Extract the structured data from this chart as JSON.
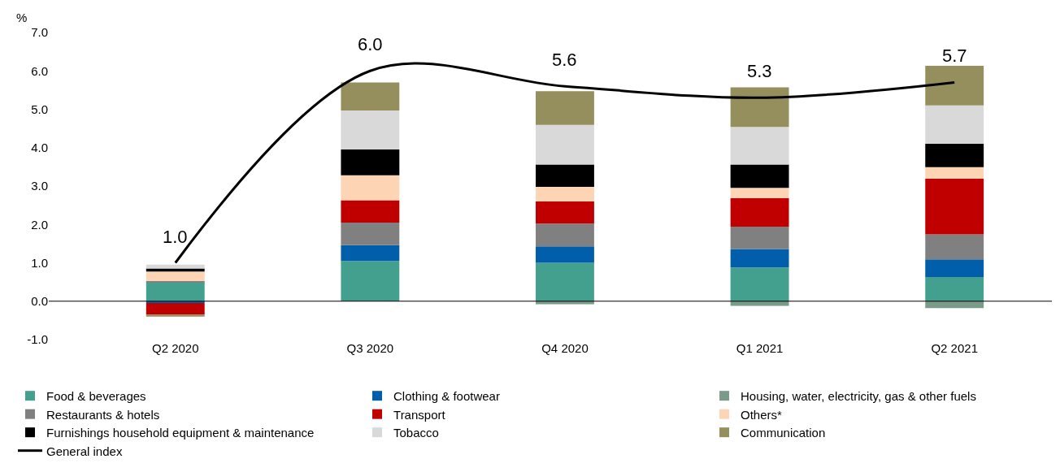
{
  "chart_data": {
    "type": "bar",
    "stacked": true,
    "ylabel": "%",
    "categories": [
      "Q2 2020",
      "Q3 2020",
      "Q4 2020",
      "Q1 2021",
      "Q2 2021"
    ],
    "ylim": [
      -1,
      7
    ],
    "ref_lines": [
      {
        "axis": "y",
        "value": 0,
        "color": "#000000"
      }
    ],
    "yticks": [
      {
        "value": -1,
        "label": "-1.0"
      },
      {
        "value": 0,
        "label": "0.0"
      },
      {
        "value": 1,
        "label": "1.0"
      },
      {
        "value": 2,
        "label": "2.0"
      },
      {
        "value": 3,
        "label": "3.0"
      },
      {
        "value": 4,
        "label": "4.0"
      },
      {
        "value": 5,
        "label": "5.0"
      },
      {
        "value": 6,
        "label": "6.0"
      },
      {
        "value": 7,
        "label": "7.0"
      }
    ],
    "legend": "bottom",
    "series": [
      {
        "name": "Food & beverages",
        "color": "#43a08e",
        "values": [
          0.5,
          1.05,
          1.0,
          0.88,
          0.63
        ]
      },
      {
        "name": "Clothing & footwear",
        "color": "#005eaa",
        "values": [
          -0.05,
          0.41,
          0.43,
          0.48,
          0.46
        ]
      },
      {
        "name": "Housing, water, electricity, gas & other fuels",
        "color": "#7a9a8a",
        "values": [
          0.0,
          0.0,
          -0.08,
          -0.12,
          -0.18
        ]
      },
      {
        "name": "Restaurants & hotels",
        "color": "#808080",
        "values": [
          0.03,
          0.59,
          0.59,
          0.58,
          0.65
        ]
      },
      {
        "name": "Transport",
        "color": "#c00000",
        "values": [
          -0.3,
          0.58,
          0.58,
          0.75,
          1.45
        ]
      },
      {
        "name": "Others*",
        "color": "#fdd5b4",
        "values": [
          0.24,
          0.65,
          0.38,
          0.26,
          0.3
        ]
      },
      {
        "name": "Furnishings household equipment & maintenance",
        "color": "#000000",
        "values": [
          0.08,
          0.67,
          0.58,
          0.61,
          0.61
        ]
      },
      {
        "name": "Tobacco",
        "color": "#d9d9d9",
        "values": [
          0.1,
          1.02,
          1.03,
          0.98,
          1.0
        ]
      },
      {
        "name": "Communication",
        "color": "#948f5d",
        "values": [
          -0.05,
          0.73,
          0.88,
          1.03,
          1.03
        ]
      },
      {
        "name": "General index",
        "type": "line",
        "color": "#000000",
        "marker": "none",
        "values": [
          1.0,
          6.0,
          5.6,
          5.3,
          5.7
        ],
        "value_labels": [
          "1.0",
          "6.0",
          "5.6",
          "5.3",
          "5.7"
        ]
      }
    ]
  }
}
